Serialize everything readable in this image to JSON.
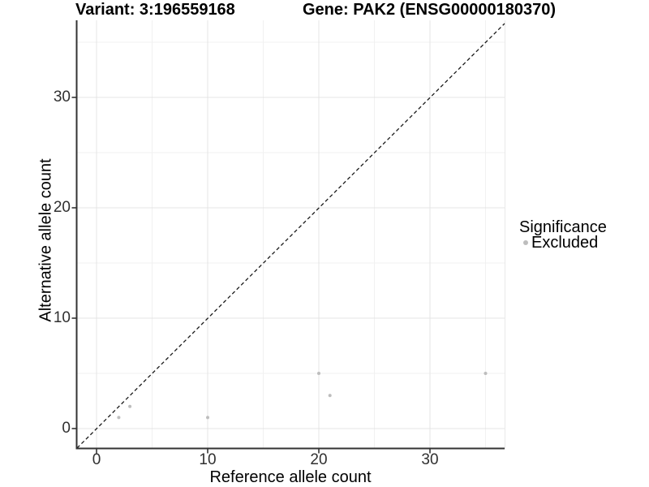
{
  "header": {
    "variant_title": "Variant: 3:196559168",
    "gene_title": "Gene: PAK2 (ENSG00000180370)"
  },
  "axes": {
    "x_label": "Reference allele count",
    "y_label": "Alternative allele count",
    "x_ticks": [
      0,
      10,
      20,
      30
    ],
    "y_ticks": [
      0,
      10,
      20,
      30
    ]
  },
  "legend": {
    "title": "Significance",
    "items": [
      {
        "label": "Excluded",
        "color": "#bdbdbd"
      }
    ]
  },
  "colors": {
    "background": "#ffffff",
    "grid_major": "#e4e4e4",
    "grid_minor": "#f1f1f1",
    "axis_line": "#333333",
    "identity_line": "#1a1a1a",
    "point_excluded": "#bdbdbd"
  },
  "chart_data": {
    "type": "scatter",
    "title": "Variant: 3:196559168",
    "subtitle": "Gene: PAK2 (ENSG00000180370)",
    "xlabel": "Reference allele count",
    "ylabel": "Alternative allele count",
    "xlim": [
      -1.75,
      36.75
    ],
    "ylim": [
      -1.75,
      36.75
    ],
    "x_ticks": [
      0,
      10,
      20,
      30
    ],
    "y_ticks": [
      0,
      10,
      20,
      30
    ],
    "minor_breaks": [
      5,
      15,
      25,
      35
    ],
    "grid": true,
    "legend_position": "right",
    "identity_line": {
      "type": "dashed",
      "equation": "y = x"
    },
    "series": [
      {
        "name": "Excluded",
        "color": "#bdbdbd",
        "points": [
          {
            "x": 2,
            "y": 1
          },
          {
            "x": 3,
            "y": 2
          },
          {
            "x": 10,
            "y": 1
          },
          {
            "x": 20,
            "y": 5
          },
          {
            "x": 21,
            "y": 3
          },
          {
            "x": 35,
            "y": 5
          }
        ]
      }
    ]
  }
}
